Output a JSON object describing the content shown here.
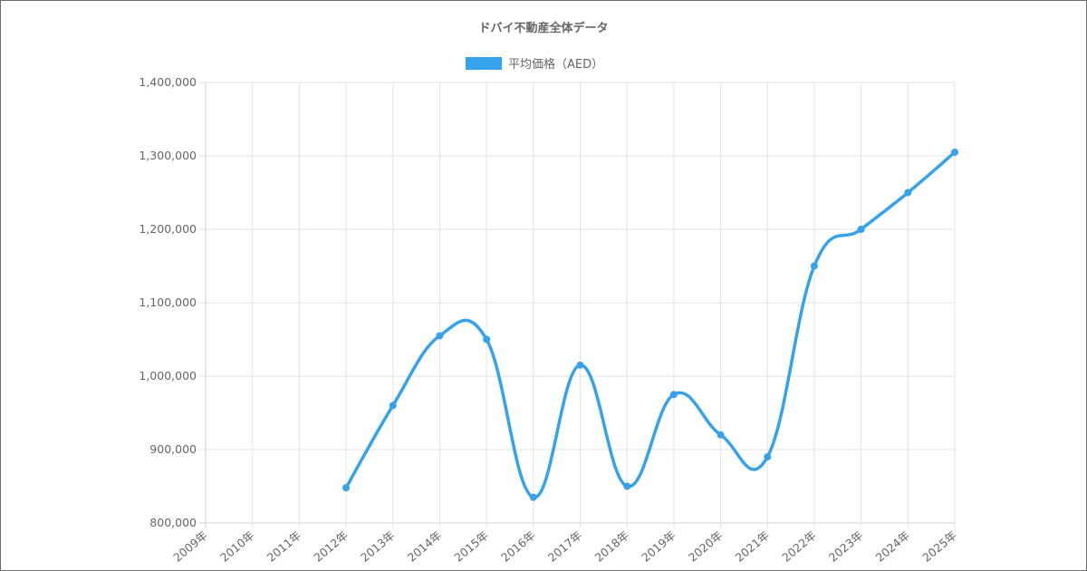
{
  "chart_data": {
    "type": "line",
    "title": "ドバイ不動産全体データ",
    "legend": {
      "placement": "top-center"
    },
    "series": [
      {
        "name": "平均価格（AED）",
        "color": "#36a2eb",
        "values": [
          null,
          null,
          null,
          848000,
          960000,
          1055000,
          1050000,
          835000,
          1015000,
          850000,
          975000,
          920000,
          890000,
          1150000,
          1200000,
          1250000,
          1305000
        ]
      }
    ],
    "categories": [
      "2009年",
      "2010年",
      "2011年",
      "2012年",
      "2013年",
      "2014年",
      "2015年",
      "2016年",
      "2017年",
      "2018年",
      "2019年",
      "2020年",
      "2021年",
      "2022年",
      "2023年",
      "2024年",
      "2025年"
    ],
    "ylim": [
      800000,
      1400000
    ],
    "y_ticks": [
      "800,000",
      "900,000",
      "1,000,000",
      "1,100,000",
      "1,200,000",
      "1,300,000",
      "1,400,000"
    ],
    "grid": true,
    "xlabel": "",
    "ylabel": ""
  }
}
